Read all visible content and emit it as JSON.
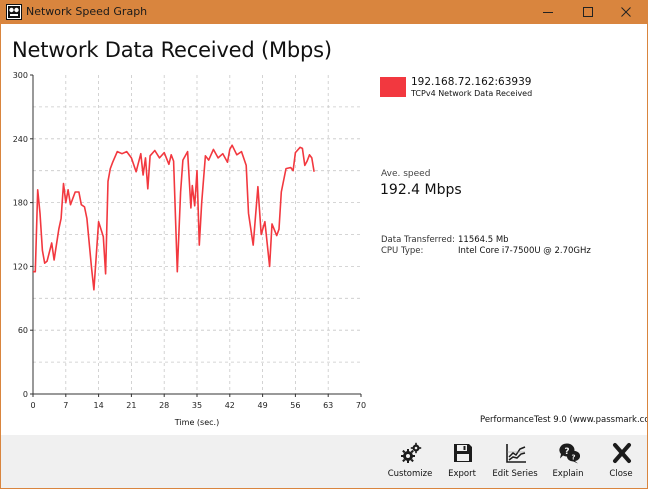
{
  "window": {
    "title": "Network Speed Graph",
    "minimize_glyph": "—",
    "maximize_glyph": "☐",
    "close_glyph": "✕"
  },
  "chart": {
    "title": "Network Data Received (Mbps)"
  },
  "legend": {
    "host": "192.168.72.162:63939",
    "description": "TCPv4 Network Data Received",
    "color": "#f2383f"
  },
  "stats": {
    "ave_label": "Ave. speed",
    "ave_value": "192.4 Mbps",
    "transferred_label": "Data Transferred:",
    "transferred_value": "11564.5 Mb",
    "cpu_label": "CPU Type:",
    "cpu_value": "Intel Core i7-7500U @ 2.70GHz"
  },
  "brand": "PerformanceTest 9.0 (www.passmark.com)",
  "toolbar": {
    "customize": "Customize",
    "export": "Export",
    "edit_series": "Edit Series",
    "explain": "Explain",
    "close": "Close"
  },
  "icons": {
    "app": "passmark-app-icon",
    "customize": "gears-icon",
    "export": "floppy-disk-icon",
    "edit_series": "line-chart-icon",
    "explain": "question-bubble-icon",
    "close": "x-close-icon"
  },
  "chart_data": {
    "type": "line",
    "title": "",
    "xlabel": "Time (sec.)",
    "ylabel": "",
    "xlim": [
      0,
      70
    ],
    "ylim": [
      0,
      300
    ],
    "x_ticks": [
      0,
      7,
      14,
      21,
      28,
      35,
      42,
      49,
      56,
      63,
      70
    ],
    "y_ticks": [
      0,
      60,
      120,
      180,
      240,
      300
    ],
    "grid": true,
    "legend_position": "right",
    "series": [
      {
        "name": "192.168.72.162:63939",
        "color": "#f2383f",
        "points": [
          [
            0,
            115
          ],
          [
            0.5,
            115
          ],
          [
            1,
            192
          ],
          [
            1.5,
            170
          ],
          [
            2,
            135
          ],
          [
            2.5,
            123
          ],
          [
            3,
            125
          ],
          [
            4,
            142
          ],
          [
            4.5,
            126
          ],
          [
            5.5,
            155
          ],
          [
            6,
            165
          ],
          [
            6.5,
            198
          ],
          [
            7,
            180
          ],
          [
            7.5,
            192
          ],
          [
            8,
            178
          ],
          [
            9,
            190
          ],
          [
            9.8,
            190
          ],
          [
            10.3,
            178
          ],
          [
            11,
            176
          ],
          [
            11.5,
            165
          ],
          [
            12.5,
            118
          ],
          [
            13,
            98
          ],
          [
            14,
            162
          ],
          [
            15,
            148
          ],
          [
            15.5,
            113
          ],
          [
            16,
            200
          ],
          [
            16.5,
            212
          ],
          [
            17,
            218
          ],
          [
            18,
            228
          ],
          [
            19,
            226
          ],
          [
            20,
            228
          ],
          [
            21,
            222
          ],
          [
            22,
            209
          ],
          [
            23,
            226
          ],
          [
            23.5,
            206
          ],
          [
            24,
            222
          ],
          [
            24.5,
            193
          ],
          [
            25,
            224
          ],
          [
            26,
            229
          ],
          [
            27,
            222
          ],
          [
            28,
            227
          ],
          [
            29,
            216
          ],
          [
            29.5,
            225
          ],
          [
            30,
            219
          ],
          [
            30.8,
            115
          ],
          [
            31.5,
            190
          ],
          [
            32,
            220
          ],
          [
            33,
            228
          ],
          [
            33.7,
            175
          ],
          [
            34,
            196
          ],
          [
            34.5,
            177
          ],
          [
            35,
            210
          ],
          [
            35.5,
            140
          ],
          [
            36,
            180
          ],
          [
            36.8,
            224
          ],
          [
            37.5,
            220
          ],
          [
            38.5,
            230
          ],
          [
            39.5,
            222
          ],
          [
            40.5,
            226
          ],
          [
            41.5,
            218
          ],
          [
            42,
            230
          ],
          [
            42.5,
            234
          ],
          [
            43.5,
            225
          ],
          [
            44.5,
            228
          ],
          [
            45.5,
            215
          ],
          [
            46,
            170
          ],
          [
            47,
            140
          ],
          [
            48,
            195
          ],
          [
            48.7,
            150
          ],
          [
            49.5,
            162
          ],
          [
            50.5,
            120
          ],
          [
            51,
            160
          ],
          [
            52,
            149
          ],
          [
            52.5,
            155
          ],
          [
            53,
            190
          ],
          [
            54,
            212
          ],
          [
            55,
            213
          ],
          [
            55.5,
            210
          ],
          [
            56,
            227
          ],
          [
            57,
            232
          ],
          [
            57.5,
            231
          ],
          [
            58,
            215
          ],
          [
            58.5,
            219
          ],
          [
            59,
            225
          ],
          [
            59.5,
            222
          ],
          [
            60,
            209
          ]
        ]
      }
    ]
  }
}
